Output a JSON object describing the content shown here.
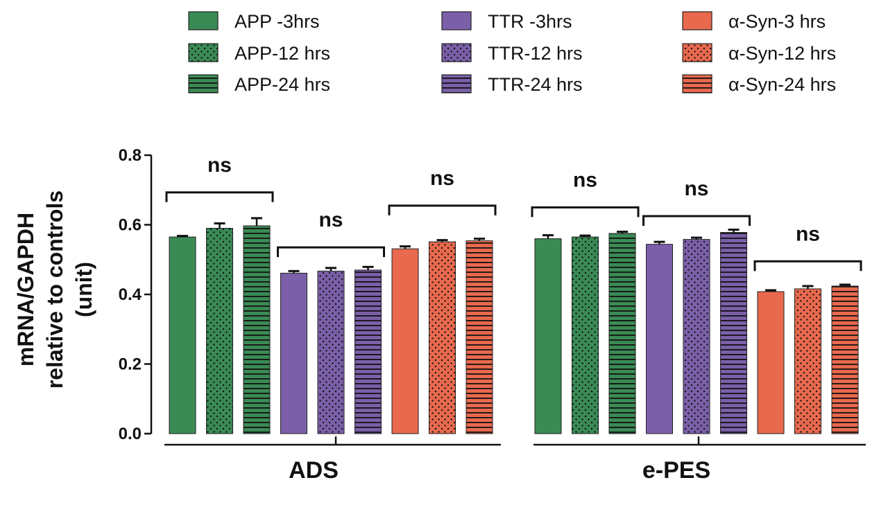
{
  "chart_data": {
    "type": "bar",
    "ylabel_lines": [
      "mRNA/GAPDH",
      "relative to controls",
      "(unit)"
    ],
    "ylim": [
      0,
      0.8
    ],
    "yticks": [
      "0.0",
      "0.2",
      "0.4",
      "0.6",
      "0.8"
    ],
    "grid": false,
    "legend_position": "top",
    "legend": [
      {
        "label": "APP -3hrs",
        "color": "#3a8a55",
        "pattern": "solid"
      },
      {
        "label": "APP-12 hrs",
        "color": "#3a8a55",
        "pattern": "dots"
      },
      {
        "label": "APP-24 hrs",
        "color": "#3a8a55",
        "pattern": "stripes"
      },
      {
        "label": "TTR -3hrs",
        "color": "#7b5fa8",
        "pattern": "solid"
      },
      {
        "label": "TTR-12 hrs",
        "color": "#7b5fa8",
        "pattern": "dots"
      },
      {
        "label": "TTR-24 hrs",
        "color": "#7b5fa8",
        "pattern": "stripes"
      },
      {
        "label": "α-Syn-3 hrs",
        "color": "#e8694e",
        "pattern": "solid"
      },
      {
        "label": "α-Syn-12 hrs",
        "color": "#e8694e",
        "pattern": "dots"
      },
      {
        "label": "α-Syn-24 hrs",
        "color": "#e8694e",
        "pattern": "stripes"
      }
    ],
    "groups": [
      {
        "name": "ADS",
        "values": [
          0.565,
          0.59,
          0.597,
          0.461,
          0.467,
          0.47,
          0.531,
          0.551,
          0.554
        ],
        "errors": [
          0.003,
          0.014,
          0.022,
          0.006,
          0.009,
          0.009,
          0.007,
          0.005,
          0.006
        ],
        "ns": [
          {
            "label": "ns",
            "bars": [
              0,
              2
            ],
            "y": 0.693
          },
          {
            "label": "ns",
            "bars": [
              3,
              5
            ],
            "y": 0.535
          },
          {
            "label": "ns",
            "bars": [
              6,
              8
            ],
            "y": 0.655
          }
        ]
      },
      {
        "name": "e-PES",
        "values": [
          0.56,
          0.565,
          0.575,
          0.544,
          0.558,
          0.578,
          0.408,
          0.416,
          0.424
        ],
        "errors": [
          0.01,
          0.004,
          0.005,
          0.007,
          0.005,
          0.008,
          0.004,
          0.008,
          0.004
        ],
        "ns": [
          {
            "label": "ns",
            "bars": [
              0,
              2
            ],
            "y": 0.65
          },
          {
            "label": "ns",
            "bars": [
              3,
              5
            ],
            "y": 0.625
          },
          {
            "label": "ns",
            "bars": [
              6,
              8
            ],
            "y": 0.495
          }
        ]
      }
    ]
  }
}
